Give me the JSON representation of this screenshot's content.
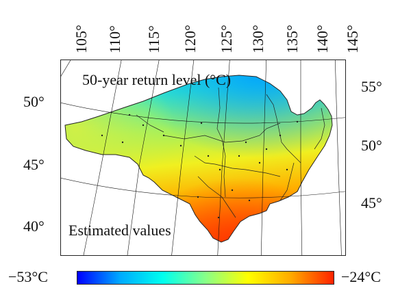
{
  "figure": {
    "title": "50-year return level (°C)",
    "subtitle": "Estimated values"
  },
  "axes": {
    "top_longitude_labels": [
      "105°",
      "110°",
      "115°",
      "120°",
      "125°",
      "130°",
      "135°",
      "140°",
      "145°"
    ],
    "left_latitude_labels": [
      "50°",
      "45°",
      "40°"
    ],
    "right_latitude_labels": [
      "55°",
      "50°",
      "45°"
    ]
  },
  "colorbar": {
    "min_label": "−53°C",
    "max_label": "−24°C",
    "min_value": -53,
    "max_value": -24,
    "colors": [
      "#0000ff",
      "#00aaff",
      "#00ffee",
      "#88ff88",
      "#ffff00",
      "#ffaa00",
      "#ff2200"
    ]
  }
}
